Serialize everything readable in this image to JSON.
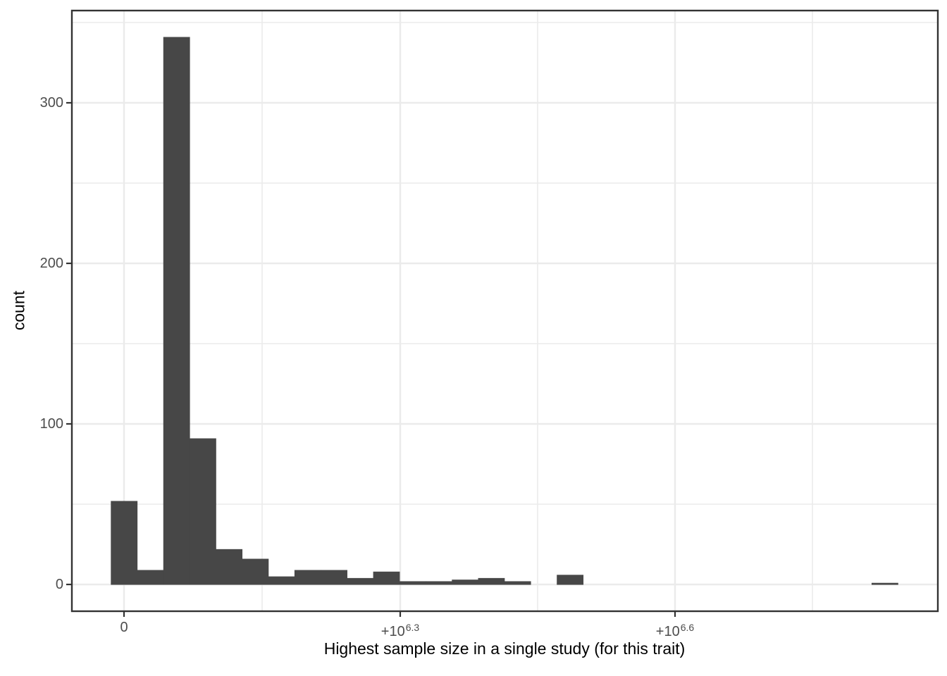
{
  "chart_data": {
    "type": "bar",
    "subtype": "histogram",
    "title": "",
    "xlabel": "Highest sample size in a single study (for this trait)",
    "ylabel": "count",
    "x_scale": "signed pseudo-log",
    "xticks": [
      {
        "label": "0"
      },
      {
        "base": "+10",
        "exp": "6.3"
      },
      {
        "base": "+10",
        "exp": "6.6"
      }
    ],
    "x_tick_labels": [
      "0",
      "+10^6.3",
      "+10^6.6"
    ],
    "ytick_labels": [
      "0",
      "100",
      "200",
      "300"
    ],
    "y_ticks": [
      0,
      100,
      200,
      300
    ],
    "y_minor_ticks": [
      50,
      150,
      250,
      350
    ],
    "ylim": [
      0,
      357
    ],
    "grid": true,
    "legend": false,
    "n_bins": 30,
    "bin_counts": [
      52,
      9,
      341,
      91,
      22,
      16,
      5,
      9,
      9,
      4,
      8,
      2,
      2,
      3,
      4,
      2,
      0,
      6,
      0,
      0,
      0,
      0,
      0,
      0,
      0,
      0,
      0,
      0,
      0,
      1
    ],
    "colors": {
      "bar_fill": "#474747",
      "panel_border": "#333333",
      "gridline": "#ebebeb",
      "tick_mark": "#333333",
      "tick_text": "#4d4d4d",
      "title_text": "#000000",
      "background": "#ffffff"
    }
  }
}
